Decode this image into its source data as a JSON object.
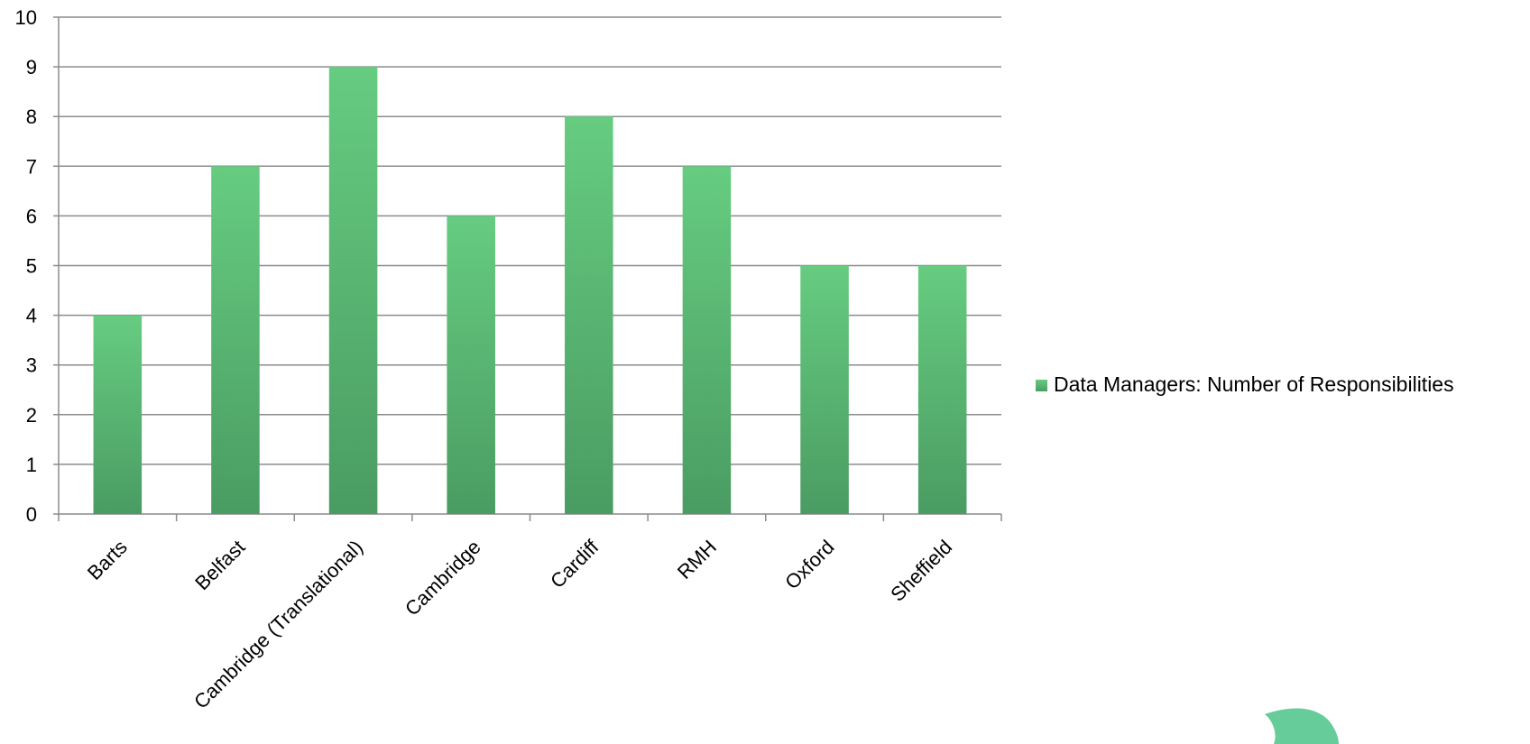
{
  "chart_data": {
    "type": "bar",
    "categories": [
      "Barts",
      "Belfast",
      "Cambridge (Translational)",
      "Cambridge",
      "Cardiff",
      "RMH",
      "Oxford",
      "Sheffield"
    ],
    "series": [
      {
        "name": "Data Managers: Number of Responsibilities",
        "values": [
          4,
          7,
          9,
          6,
          8,
          7,
          5,
          5
        ],
        "color_top": "#66cc80",
        "color_bottom": "#4a9c62"
      }
    ],
    "ylim": [
      0,
      10
    ],
    "yticks": [
      0,
      1,
      2,
      3,
      4,
      5,
      6,
      7,
      8,
      9,
      10
    ],
    "grid": true,
    "legend_position": "right",
    "gridline_color": "#8c8c8c",
    "axis_color": "#8c8c8c",
    "decoration_color": "#66cc99"
  }
}
